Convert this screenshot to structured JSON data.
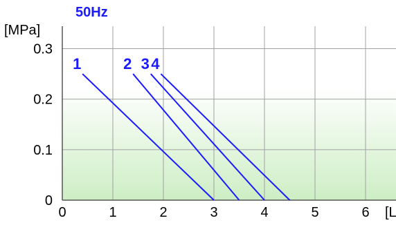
{
  "chart_data": {
    "type": "line",
    "title": "50Hz",
    "ylabel": "[MPa]",
    "xlabel": "[L",
    "xlim": [
      0,
      6.8
    ],
    "ylim": [
      0,
      0.34
    ],
    "xticks": [
      "0",
      "1",
      "2",
      "3",
      "4",
      "5",
      "6"
    ],
    "yticks": [
      "0",
      "0.1",
      "0.2",
      "0.3"
    ],
    "grid": true,
    "series": [
      {
        "name": "1",
        "x": [
          0.4,
          3.0
        ],
        "y": [
          0.25,
          0
        ]
      },
      {
        "name": "2",
        "x": [
          1.4,
          3.5
        ],
        "y": [
          0.25,
          0
        ]
      },
      {
        "name": "3",
        "x": [
          1.75,
          4.0
        ],
        "y": [
          0.25,
          0
        ]
      },
      {
        "name": "4",
        "x": [
          1.95,
          4.5
        ],
        "y": [
          0.25,
          0
        ]
      }
    ],
    "colors": {
      "line": "#1a1aff",
      "title": "#1a1aff",
      "grid": "#a0a0a0",
      "fill_top": "#ffffff",
      "fill_bottom": "#cdeec4"
    }
  }
}
